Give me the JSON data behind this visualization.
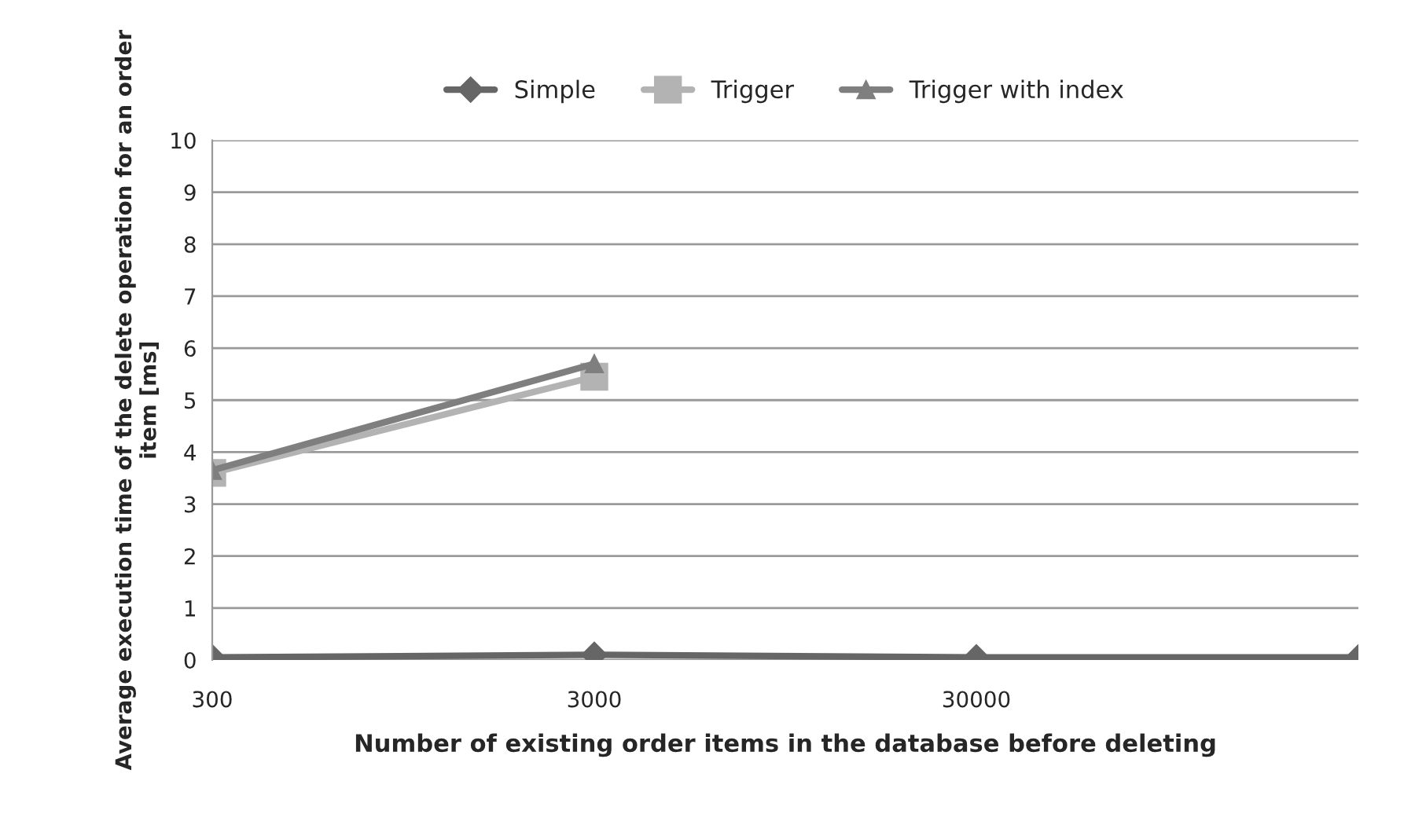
{
  "chart_data": {
    "type": "line",
    "xlabel": "Number of existing order items in the database before deleting",
    "ylabel": "Average execution time of the delete operation for an order item [ms]",
    "categories": [
      "300",
      "3000",
      "30000",
      null
    ],
    "series": [
      {
        "name": "Simple",
        "color": "#666666",
        "marker": "diamond",
        "values": [
          0.05,
          0.1,
          0.05,
          0.05
        ]
      },
      {
        "name": "Trigger",
        "color": "#b3b3b3",
        "marker": "square",
        "values": [
          3.6,
          5.45,
          null,
          null
        ]
      },
      {
        "name": "Trigger with index",
        "color": "#7f7f7f",
        "marker": "triangle",
        "values": [
          3.65,
          5.7,
          null,
          null
        ]
      }
    ],
    "ylim": [
      0,
      10
    ],
    "yticks": [
      0,
      1,
      2,
      3,
      4,
      5,
      6,
      7,
      8,
      9,
      10
    ],
    "grid": "y",
    "legend": "top",
    "line_style": "solid"
  }
}
